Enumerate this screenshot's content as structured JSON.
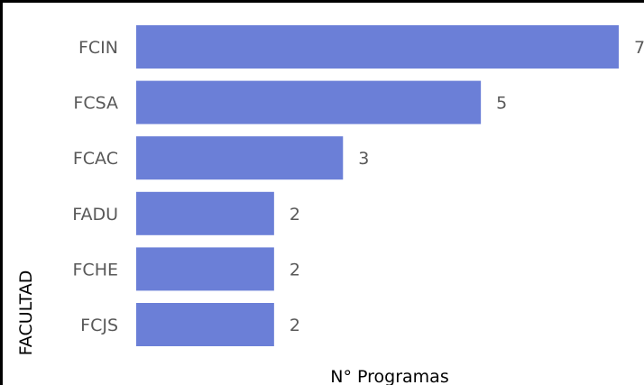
{
  "chart_data": {
    "type": "bar",
    "orientation": "horizontal",
    "categories": [
      "FCIN",
      "FCSA",
      "FCAC",
      "FADU",
      "FCHE",
      "FCJS"
    ],
    "values": [
      7,
      5,
      3,
      2,
      2,
      2
    ],
    "xlabel": "N° Programas",
    "ylabel": "FACULTAD",
    "xlim": [
      0,
      7
    ],
    "data_labels": true,
    "grid": false,
    "legend": false,
    "bar_color": "#6b7fd7"
  }
}
